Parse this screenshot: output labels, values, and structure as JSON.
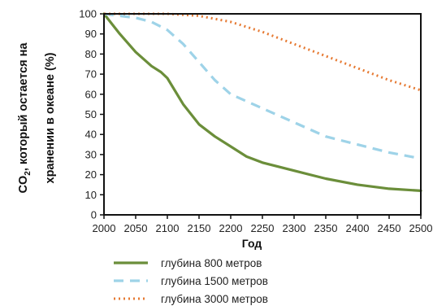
{
  "chart_data": {
    "type": "line",
    "xlabel": "Год",
    "ylabel_prefix": "CO",
    "ylabel_sub": "2",
    "ylabel_rest": ", который остается на",
    "ylabel_line2": "хранении в океане (%)",
    "xlim": [
      2000,
      2500
    ],
    "ylim": [
      0,
      100
    ],
    "xticks": [
      "2000",
      "2050",
      "2100",
      "2150",
      "2200",
      "2250",
      "2300",
      "2350",
      "2400",
      "2450",
      "2500"
    ],
    "yticks": [
      "0",
      "10",
      "20",
      "30",
      "40",
      "50",
      "60",
      "70",
      "80",
      "90",
      "100"
    ],
    "grid": false,
    "legend_position": "bottom",
    "series": [
      {
        "name": "глубина 800 метров",
        "color": "#6b8e3a",
        "style": "solid",
        "x": [
          2000,
          2025,
          2050,
          2075,
          2090,
          2100,
          2125,
          2150,
          2175,
          2200,
          2225,
          2250,
          2300,
          2350,
          2400,
          2450,
          2500
        ],
        "y": [
          100,
          90,
          81,
          74,
          71,
          68,
          55,
          45,
          39,
          34,
          29,
          26,
          22,
          18,
          15,
          13,
          12
        ]
      },
      {
        "name": "глубина 1500 метров",
        "color": "#9ed3e8",
        "style": "dashed",
        "x": [
          2000,
          2050,
          2075,
          2100,
          2125,
          2150,
          2175,
          2200,
          2250,
          2300,
          2350,
          2400,
          2450,
          2500
        ],
        "y": [
          100,
          98,
          96,
          92,
          85,
          76,
          67,
          60,
          53,
          46,
          39,
          35,
          31,
          28
        ]
      },
      {
        "name": "глубина 3000 метров",
        "color": "#e67a33",
        "style": "dotted",
        "x": [
          2000,
          2050,
          2100,
          2150,
          2200,
          2250,
          2300,
          2350,
          2400,
          2450,
          2500
        ],
        "y": [
          100,
          100,
          100,
          99,
          96,
          91,
          85,
          79,
          73,
          67,
          62
        ]
      }
    ]
  }
}
